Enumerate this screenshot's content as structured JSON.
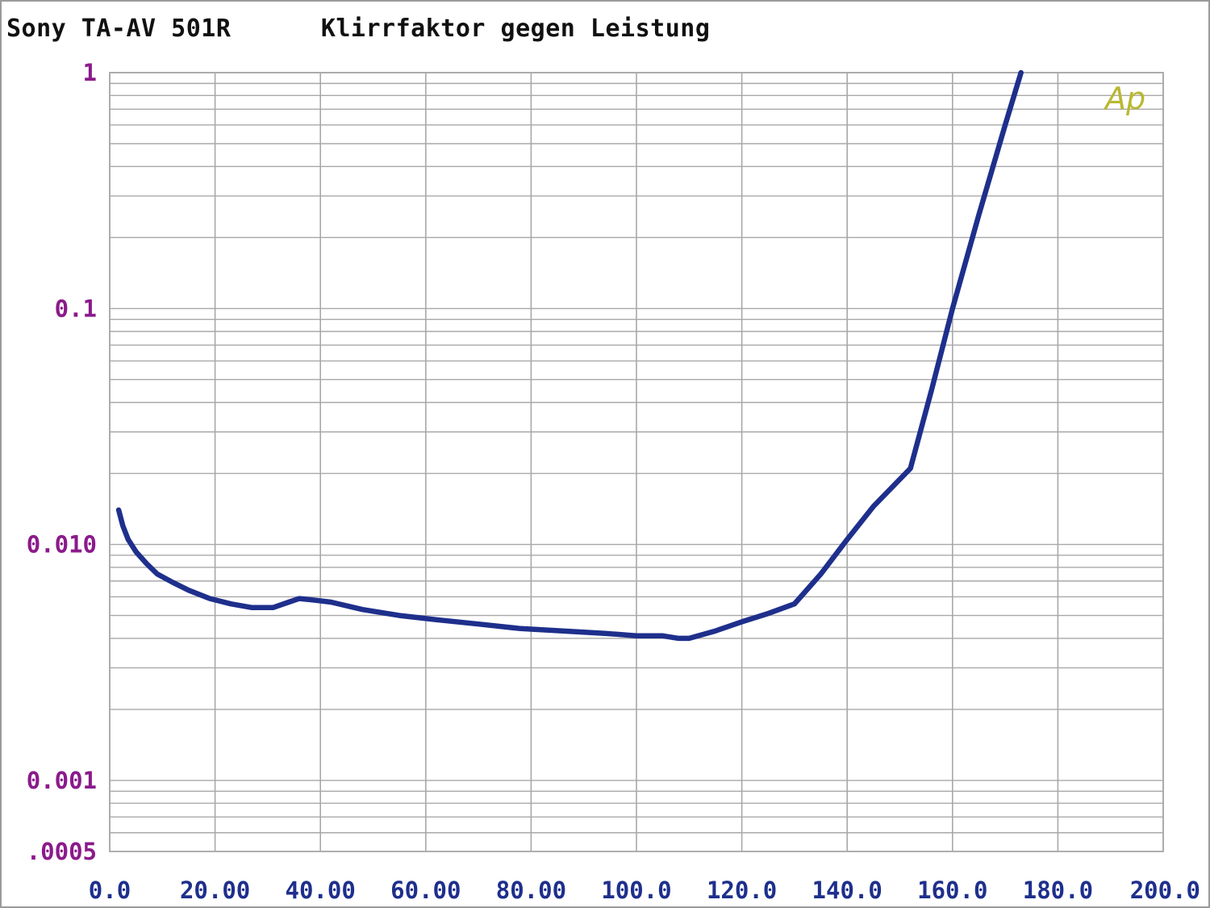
{
  "header": {
    "device": "Sony TA-AV 501R",
    "measurement": "Klirrfaktor gegen Leistung"
  },
  "logo": {
    "text": "Ap",
    "color": "#b8b832"
  },
  "colors": {
    "series": "#1e2f8c",
    "y_tick": "#8b1a8b",
    "x_tick": "#1e2f8c",
    "grid": "#a8a8a8"
  },
  "chart_data": {
    "type": "line",
    "title": "Klirrfaktor gegen Leistung",
    "xlabel": "",
    "ylabel": "",
    "x_scale": "linear",
    "y_scale": "log",
    "xlim": [
      0,
      200
    ],
    "ylim": [
      0.0005,
      1
    ],
    "grid": true,
    "x_ticks": [
      "0.0",
      "20.00",
      "40.00",
      "60.00",
      "80.00",
      "100.0",
      "120.0",
      "140.0",
      "160.0",
      "180.0",
      "200.0"
    ],
    "y_ticks": [
      {
        "value": 1,
        "label": "1"
      },
      {
        "value": 0.1,
        "label": "0.1"
      },
      {
        "value": 0.01,
        "label": "0.010"
      },
      {
        "value": 0.001,
        "label": "0.001"
      },
      {
        "value": 0.0005,
        "label": ".0005"
      }
    ],
    "series": [
      {
        "x": [
          1.7,
          2.5,
          3.5,
          5.0,
          7.0,
          9.0,
          12.0,
          15.0,
          19.0,
          23.0,
          27.0,
          31.0,
          34.0,
          36.0,
          39.0,
          42.0,
          48.0,
          55.0,
          62.0,
          70.0,
          78.0,
          86.0,
          94.0,
          100.0,
          105.0,
          108.0,
          110.0,
          115.0,
          120.0,
          125.0,
          130.0,
          135.0,
          140.0,
          145.0,
          152.0,
          156.0,
          160.0,
          165.0,
          170.0,
          173.0
        ],
        "y": [
          0.014,
          0.012,
          0.0105,
          0.0093,
          0.0083,
          0.0075,
          0.0069,
          0.0064,
          0.0059,
          0.0056,
          0.0054,
          0.0054,
          0.0057,
          0.0059,
          0.0058,
          0.0057,
          0.0053,
          0.005,
          0.0048,
          0.0046,
          0.0044,
          0.0043,
          0.0042,
          0.0041,
          0.0041,
          0.004,
          0.004,
          0.0043,
          0.0047,
          0.0051,
          0.0056,
          0.0075,
          0.0105,
          0.0145,
          0.021,
          0.045,
          0.1,
          0.25,
          0.6,
          1.0
        ]
      }
    ]
  }
}
